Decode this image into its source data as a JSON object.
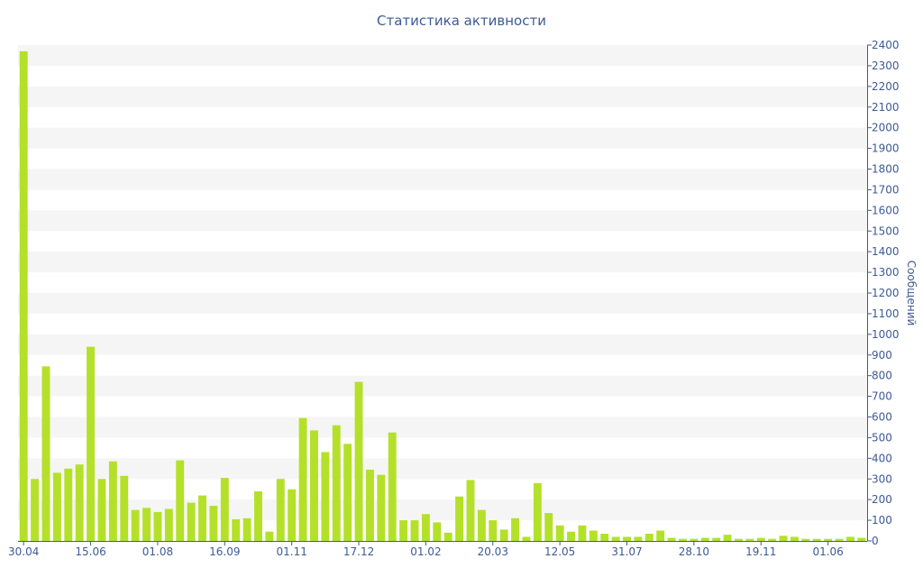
{
  "chart_data": {
    "type": "bar",
    "title": "Статистика активности",
    "ylabel": "Сообщений",
    "xlabel": "",
    "ylim": [
      0,
      2400
    ],
    "y_ticks": [
      0,
      100,
      200,
      300,
      400,
      500,
      600,
      700,
      800,
      900,
      1000,
      1100,
      1200,
      1300,
      1400,
      1500,
      1600,
      1700,
      1800,
      1900,
      2000,
      2100,
      2200,
      2300,
      2400
    ],
    "x_tick_labels": [
      {
        "label": "30.04",
        "index": 0
      },
      {
        "label": "15.06",
        "index": 6
      },
      {
        "label": "01.08",
        "index": 12
      },
      {
        "label": "16.09",
        "index": 18
      },
      {
        "label": "01.11",
        "index": 24
      },
      {
        "label": "17.12",
        "index": 30
      },
      {
        "label": "01.02",
        "index": 36
      },
      {
        "label": "20.03",
        "index": 42
      },
      {
        "label": "12.05",
        "index": 48
      },
      {
        "label": "31.07",
        "index": 54
      },
      {
        "label": "28.10",
        "index": 60
      },
      {
        "label": "19.11",
        "index": 66
      },
      {
        "label": "01.06",
        "index": 72
      }
    ],
    "bar_color": "#b5e02a",
    "band_color": "#f5f5f5",
    "axis_color": "#3d5a96",
    "grid": "alternating-bands",
    "values": [
      2370,
      300,
      845,
      330,
      350,
      370,
      940,
      300,
      385,
      315,
      150,
      160,
      140,
      155,
      390,
      185,
      220,
      170,
      305,
      105,
      110,
      240,
      45,
      300,
      250,
      595,
      535,
      430,
      560,
      470,
      770,
      345,
      320,
      525,
      100,
      100,
      130,
      90,
      40,
      215,
      295,
      150,
      100,
      55,
      110,
      20,
      280,
      135,
      75,
      45,
      75,
      50,
      35,
      20,
      20,
      20,
      35,
      50,
      15,
      10,
      10,
      15,
      15,
      30,
      10,
      10,
      15,
      10,
      25,
      20,
      10,
      10,
      10,
      10,
      20,
      15
    ]
  }
}
